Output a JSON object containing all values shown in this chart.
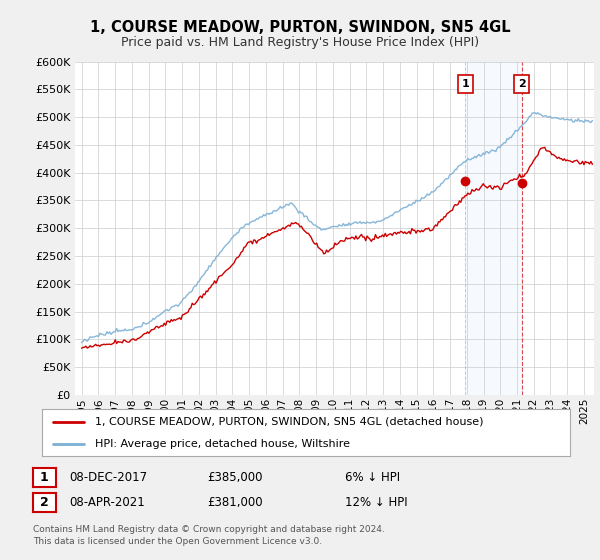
{
  "title": "1, COURSE MEADOW, PURTON, SWINDON, SN5 4GL",
  "subtitle": "Price paid vs. HM Land Registry's House Price Index (HPI)",
  "legend_line1": "1, COURSE MEADOW, PURTON, SWINDON, SN5 4GL (detached house)",
  "legend_line2": "HPI: Average price, detached house, Wiltshire",
  "annotation1_date": "08-DEC-2017",
  "annotation1_price": "£385,000",
  "annotation1_note": "6% ↓ HPI",
  "annotation2_date": "08-APR-2021",
  "annotation2_price": "£381,000",
  "annotation2_note": "12% ↓ HPI",
  "footer": "Contains HM Land Registry data © Crown copyright and database right 2024.\nThis data is licensed under the Open Government Licence v3.0.",
  "ylim": [
    0,
    600000
  ],
  "yticks": [
    0,
    50000,
    100000,
    150000,
    200000,
    250000,
    300000,
    350000,
    400000,
    450000,
    500000,
    550000,
    600000
  ],
  "hpi_color": "#7bafd4",
  "price_color": "#cc0000",
  "vline1_color": "#cc0000",
  "vline2_color": "#cc0000",
  "shade_color": "#ddeeff",
  "background_color": "#f0f0f0",
  "plot_bg_color": "#ffffff",
  "sale1_x": 2017.92,
  "sale2_x": 2021.27,
  "sale1_y": 385000,
  "sale2_y": 381000,
  "xlim_left": 1994.6,
  "xlim_right": 2025.6
}
